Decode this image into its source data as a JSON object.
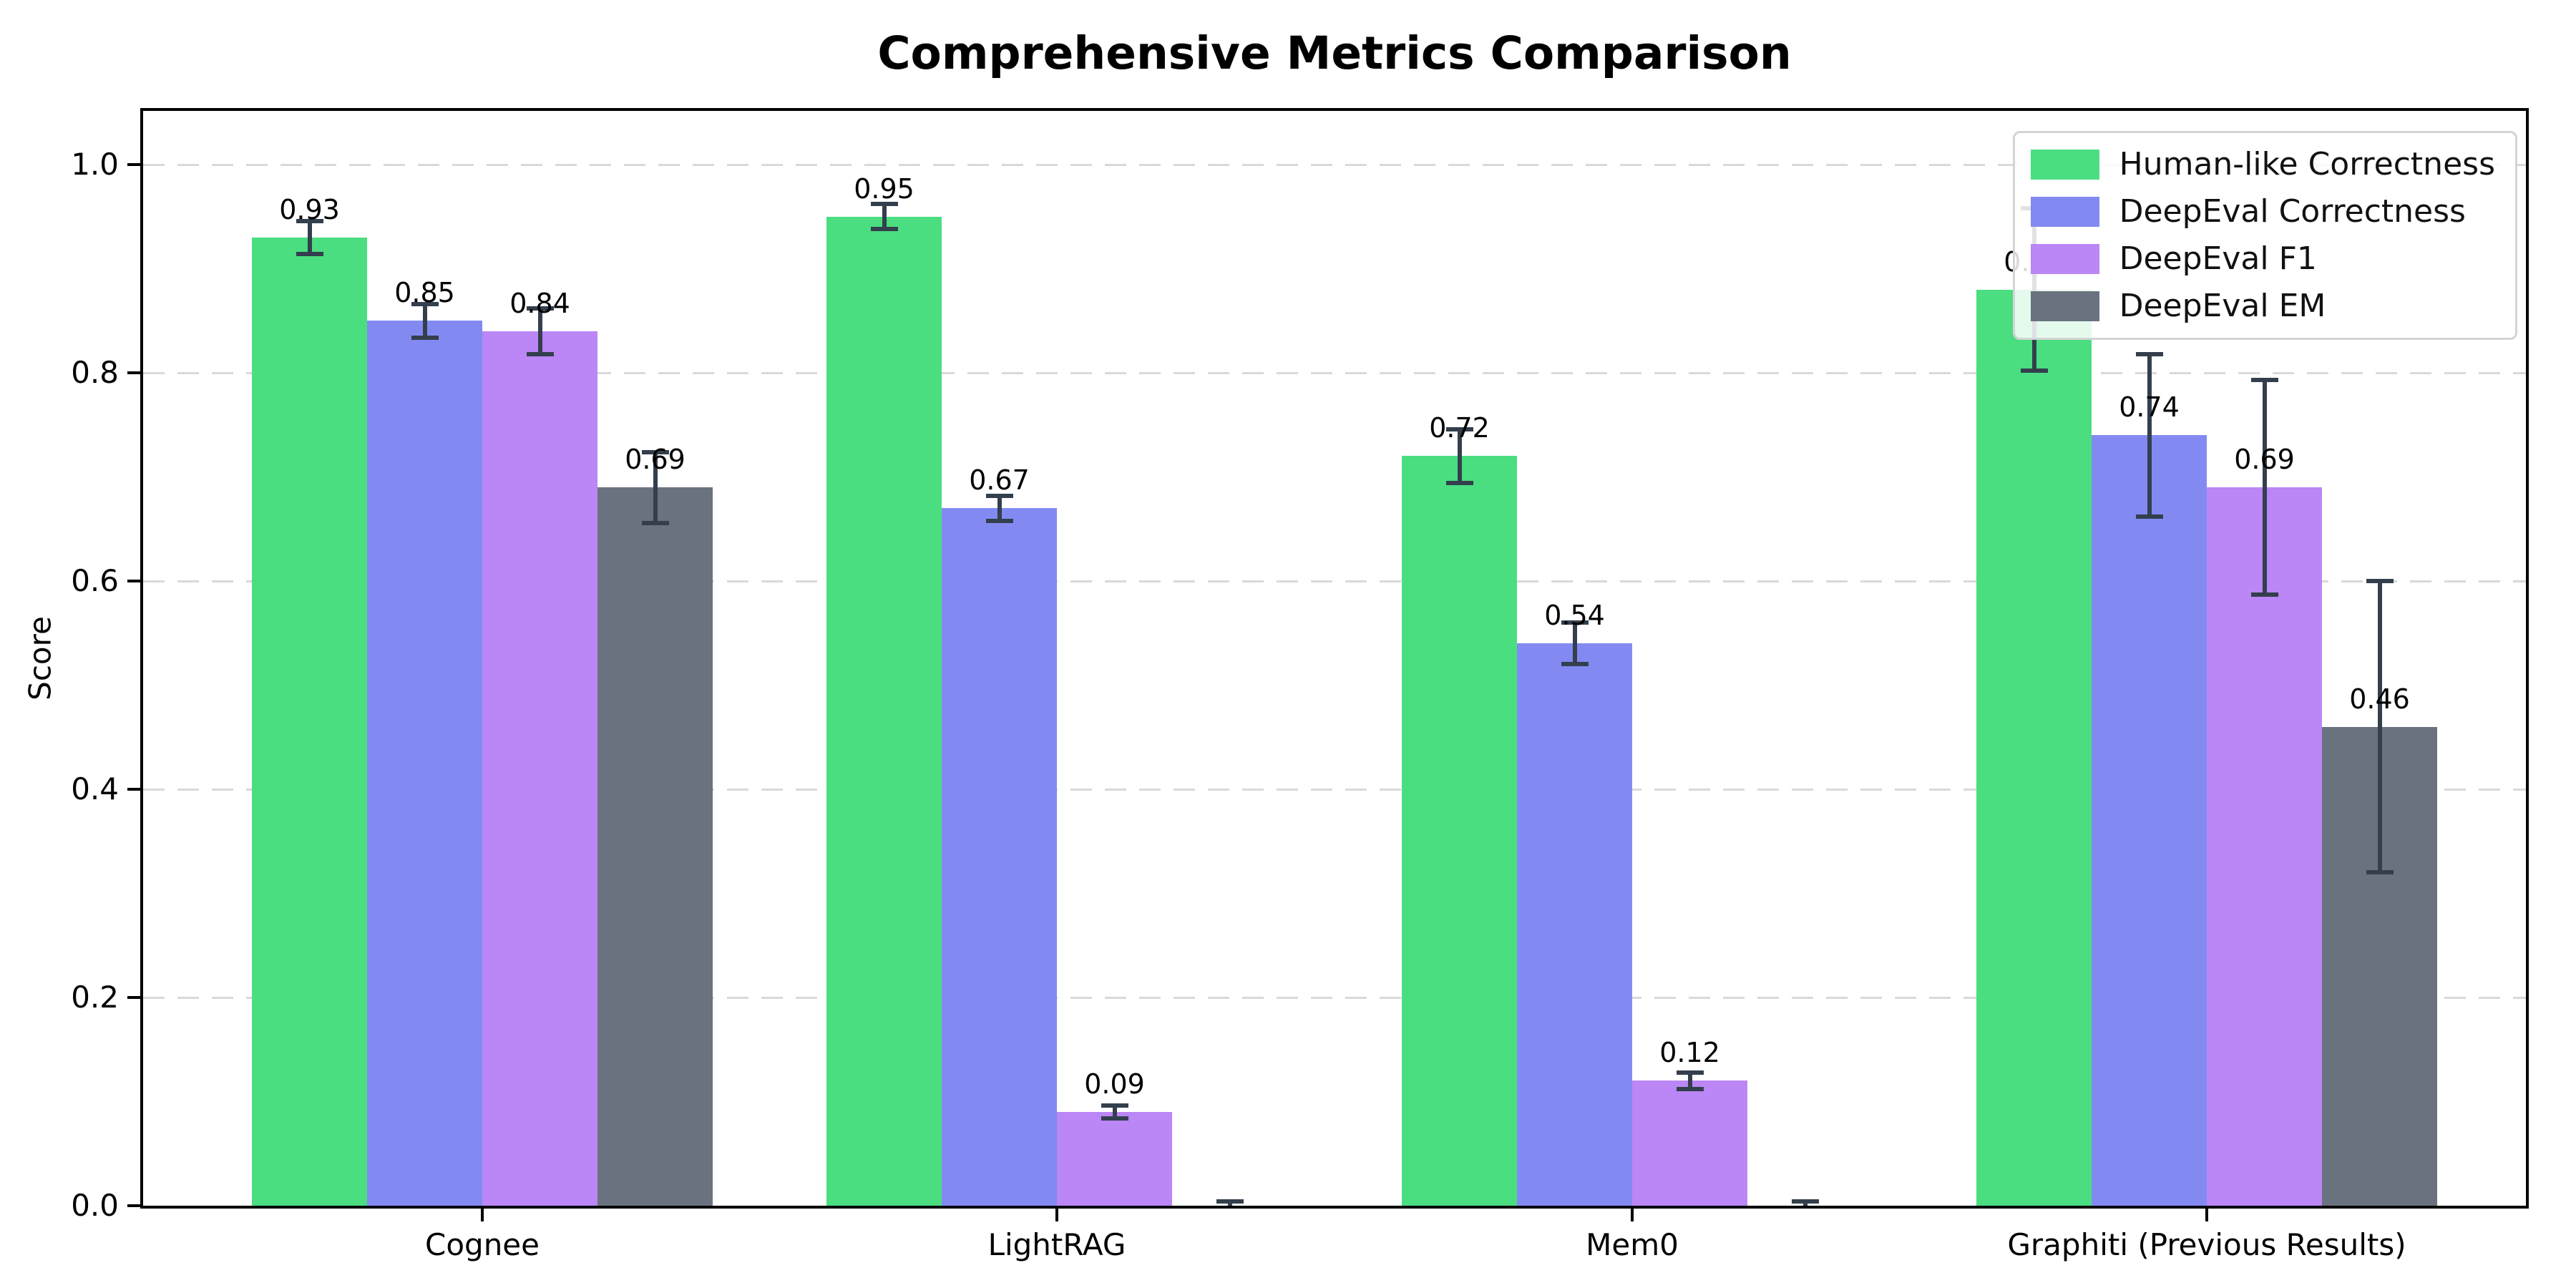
{
  "title": "Comprehensive Metrics Comparison",
  "chart_data": {
    "type": "bar",
    "title": "Comprehensive Metrics Comparison",
    "xlabel": "",
    "ylabel": "Score",
    "ylim": [
      0,
      1.05
    ],
    "yticks": [
      "0.0",
      "0.2",
      "0.4",
      "0.6",
      "0.8",
      "1.0"
    ],
    "ytick_values": [
      0,
      0.2,
      0.4,
      0.6,
      0.8,
      1.0
    ],
    "grid": "horizontal-dashed",
    "legend_position": "upper-right",
    "categories": [
      "Cognee",
      "LightRAG",
      "Mem0",
      "Graphiti (Previous Results)"
    ],
    "series": [
      {
        "name": "Human-like Correctness",
        "color": "#4ade81",
        "values": [
          0.93,
          0.95,
          0.72,
          0.88
        ],
        "errors": [
          0.016,
          0.012,
          0.026,
          0.078
        ],
        "bar_labels": [
          "0.93",
          "0.95",
          "0.72",
          "0.88"
        ]
      },
      {
        "name": "DeepEval Correctness",
        "color": "#828af2",
        "values": [
          0.85,
          0.67,
          0.54,
          0.74
        ],
        "errors": [
          0.016,
          0.012,
          0.02,
          0.078
        ],
        "bar_labels": [
          "0.85",
          "0.67",
          "0.54",
          "0.74"
        ]
      },
      {
        "name": "DeepEval F1",
        "color": "#bb86f5",
        "values": [
          0.84,
          0.09,
          0.12,
          0.69
        ],
        "errors": [
          0.022,
          0.006,
          0.008,
          0.103
        ],
        "bar_labels": [
          "0.84",
          "0.09",
          "0.12",
          "0.69"
        ]
      },
      {
        "name": "DeepEval EM",
        "color": "#6a7280",
        "values": [
          0.69,
          0.0,
          0.0,
          0.46
        ],
        "errors": [
          0.034,
          0.004,
          0.004,
          0.14
        ],
        "bar_labels": [
          "0.69",
          "",
          "",
          "0.46"
        ]
      }
    ],
    "error_bar_color": "#333f4c",
    "grid_color": "#d9d9d9"
  }
}
